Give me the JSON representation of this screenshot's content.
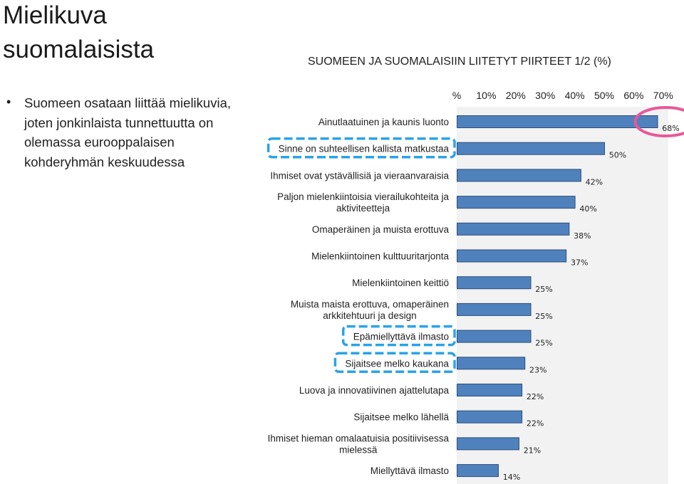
{
  "slide": {
    "title_lines": [
      "Mielikuva",
      "suomalaisista"
    ],
    "bullet": {
      "symbol": "•",
      "text": "Suomeen osataan liittää mielikuvia, joten jonkinlaista tunnettuutta on olemassa eurooppalaisen kohderyhmän keskuudessa"
    }
  },
  "colors": {
    "bar_fill": "#4f81bd",
    "bar_stroke": "#2c4f7c",
    "plot_background": "#f2f2f2",
    "dashed_highlight": "#29a3e8",
    "circle_highlight": "#e8589a"
  },
  "chart_data": {
    "type": "bar",
    "orientation": "horizontal",
    "title": "SUOMEEN JA SUOMALAISIIN LIITETYT PIIRTEET 1/2 (%)",
    "axis_position": "top",
    "xlim": [
      0,
      70
    ],
    "x_ticks": [
      "%",
      "10%",
      "20%",
      "30%",
      "40%",
      "50%",
      "60%",
      "70%"
    ],
    "categories": [
      [
        "Ainutlaatuinen ja kaunis luonto"
      ],
      [
        "Sinne on suhteellisen kallista matkustaa"
      ],
      [
        "Ihmiset ovat ystävällisiä ja vieraanvaraisia"
      ],
      [
        "Paljon mielenkiintoisia vierailukohteita ja",
        "aktiviteetteja"
      ],
      [
        "Omaperäinen ja muista erottuva"
      ],
      [
        "Mielenkiintoinen kulttuuritarjonta"
      ],
      [
        "Mielenkiintoinen keittiö"
      ],
      [
        "Muista maista erottuva, omaperäinen",
        "arkkitehtuuri ja design"
      ],
      [
        "Epämiellyttävä ilmasto"
      ],
      [
        "Sijaitsee melko kaukana"
      ],
      [
        "Luova ja innovatiivinen ajattelutapa"
      ],
      [
        "Sijaitsee melko lähellä"
      ],
      [
        "Ihmiset hieman omalaatuisia positiivisessa",
        "mielessä"
      ],
      [
        "Miellyttävä ilmasto"
      ]
    ],
    "values": [
      68,
      50,
      42,
      40,
      38,
      37,
      25,
      25,
      25,
      23,
      22,
      22,
      21,
      14
    ],
    "value_labels": [
      "68%",
      "50%",
      "42%",
      "40%",
      "38%",
      "37%",
      "25%",
      "25%",
      "25%",
      "23%",
      "22%",
      "22%",
      "21%",
      "14%"
    ],
    "highlighted_categories_dashed": [
      1,
      8,
      9
    ],
    "highlighted_value_circled": 0
  }
}
